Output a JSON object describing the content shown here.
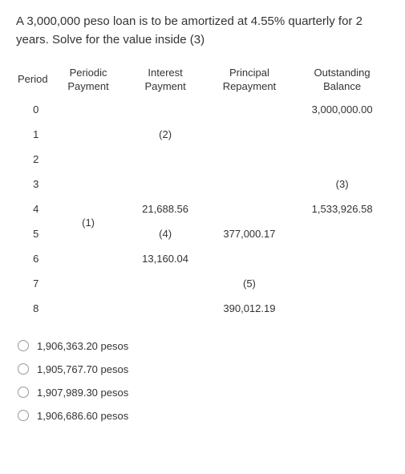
{
  "question": "A 3,000,000 peso loan is to be amortized at 4.55% quarterly for 2 years. Solve for the value inside (3)",
  "table": {
    "headers": {
      "period": "Period",
      "periodic_payment": "Periodic Payment",
      "interest_payment": "Interest Payment",
      "principal_repayment": "Principal Repayment",
      "outstanding_balance": "Outstanding Balance"
    },
    "rows": [
      {
        "period": "0",
        "periodic_payment": "",
        "interest_payment": "",
        "principal_repayment": "",
        "outstanding_balance": "3,000,000.00"
      },
      {
        "period": "1",
        "periodic_payment": "",
        "interest_payment": "(2)",
        "principal_repayment": "",
        "outstanding_balance": ""
      },
      {
        "period": "2",
        "periodic_payment": "",
        "interest_payment": "",
        "principal_repayment": "",
        "outstanding_balance": ""
      },
      {
        "period": "3",
        "periodic_payment": "",
        "interest_payment": "",
        "principal_repayment": "",
        "outstanding_balance": "(3)"
      },
      {
        "period": "4",
        "periodic_payment": "",
        "interest_payment": "21,688.56",
        "principal_repayment": "",
        "outstanding_balance": "1,533,926.58"
      },
      {
        "period": "5",
        "periodic_payment": "(1)",
        "interest_payment": "(4)",
        "principal_repayment": "377,000.17",
        "outstanding_balance": ""
      },
      {
        "period": "6",
        "periodic_payment": "",
        "interest_payment": "13,160.04",
        "principal_repayment": "",
        "outstanding_balance": ""
      },
      {
        "period": "7",
        "periodic_payment": "",
        "interest_payment": "",
        "principal_repayment": "(5)",
        "outstanding_balance": ""
      },
      {
        "period": "8",
        "periodic_payment": "",
        "interest_payment": "",
        "principal_repayment": "390,012.19",
        "outstanding_balance": ""
      }
    ]
  },
  "options": [
    {
      "label": "1,906,363.20 pesos"
    },
    {
      "label": "1,905,767.70 pesos"
    },
    {
      "label": "1,907,989.30 pesos"
    },
    {
      "label": "1,906,686.60 pesos"
    }
  ]
}
